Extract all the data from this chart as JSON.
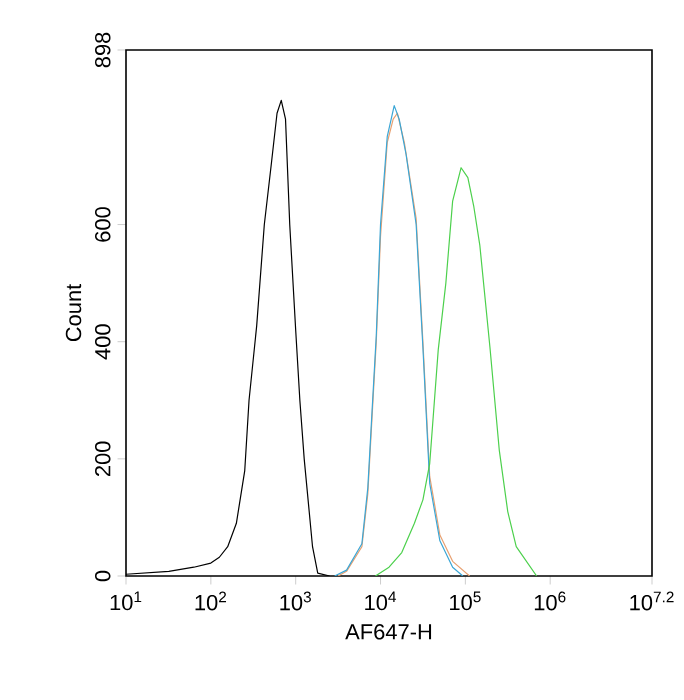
{
  "chart_data": {
    "type": "line",
    "xlabel": "AF647-H",
    "ylabel": "Count",
    "log": "x",
    "xlim": [
      10,
      15848932
    ],
    "ylim": [
      0,
      898
    ],
    "xticks": [
      {
        "value": 10,
        "label": "10$^{1}$"
      },
      {
        "value": 100,
        "label": "10$^{2}$"
      },
      {
        "value": 1000,
        "label": "10$^{3}$"
      },
      {
        "value": 10000,
        "label": "10$^{4}$"
      },
      {
        "value": 100000,
        "label": "10$^{5}$"
      },
      {
        "value": 1000000,
        "label": "10$^{6}$"
      },
      {
        "value": 15848932,
        "label": "10$^{7.2}$"
      }
    ],
    "yticks": [
      0,
      200,
      400,
      600,
      898
    ],
    "marker": "none",
    "line_style": "solid",
    "series": [
      {
        "color": "#000000",
        "x": [
          10,
          32,
          63,
          100,
          126,
          158,
          200,
          251,
          282,
          347,
          427,
          513,
          603,
          676,
          759,
          851,
          1000,
          1120,
          1260,
          1580,
          1820,
          2510
        ],
        "values": [
          3,
          8,
          15,
          22,
          32,
          50,
          90,
          180,
          300,
          427,
          600,
          700,
          790,
          812,
          780,
          600,
          420,
          300,
          200,
          50,
          5,
          0
        ]
      },
      {
        "color": "#e8a070",
        "x": [
          3160,
          3980,
          6030,
          7080,
          7940,
          8910,
          10000,
          12000,
          14100,
          15800,
          19100,
          26300,
          31600,
          38000,
          50100,
          70800,
          112000
        ],
        "values": [
          0,
          8,
          50,
          140,
          270,
          400,
          580,
          740,
          780,
          790,
          740,
          610,
          400,
          170,
          70,
          25,
          0
        ]
      },
      {
        "color": "#3aa6d6",
        "x": [
          2880,
          3980,
          6030,
          7080,
          7940,
          8910,
          10000,
          12000,
          14500,
          16600,
          20000,
          26300,
          31600,
          38000,
          50100,
          70800,
          93300
        ],
        "values": [
          0,
          10,
          55,
          150,
          280,
          410,
          600,
          750,
          803,
          780,
          720,
          600,
          390,
          158,
          60,
          15,
          0
        ]
      },
      {
        "color": "#4cd04c",
        "x": [
          8710,
          12600,
          17800,
          25100,
          31600,
          38000,
          47900,
          58900,
          70800,
          89100,
          107000,
          126000,
          148000,
          195000,
          251000,
          316000,
          398000,
          692000
        ],
        "values": [
          0,
          15,
          40,
          90,
          130,
          192,
          386,
          500,
          640,
          697,
          680,
          630,
          565,
          390,
          215,
          110,
          50,
          0
        ]
      }
    ]
  }
}
